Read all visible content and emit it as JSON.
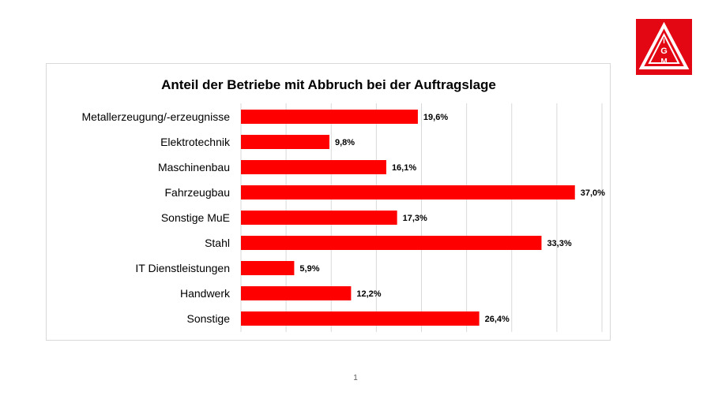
{
  "logo": {
    "text": "IGM",
    "color": "#e30613"
  },
  "page_number": "1",
  "colors": {
    "bar": "#ff0000",
    "grid": "#d9d9d9",
    "text": "#000000"
  },
  "chart_data": {
    "type": "bar",
    "orientation": "horizontal",
    "title": "Anteil der Betriebe mit Abbruch bei der Auftragslage",
    "categories": [
      "Metallerzeugung/-erzeugnisse",
      "Elektrotechnik",
      "Maschinenbau",
      "Fahrzeugbau",
      "Sonstige MuE",
      "Stahl",
      "IT Dienstleistungen",
      "Handwerk",
      "Sonstige"
    ],
    "values": [
      19.6,
      9.8,
      16.1,
      37.0,
      17.3,
      33.3,
      5.9,
      12.2,
      26.4
    ],
    "value_labels": [
      "19,6%",
      "9,8%",
      "16,1%",
      "37,0%",
      "17,3%",
      "33,3%",
      "5,9%",
      "12,2%",
      "26,4%"
    ],
    "xlim": [
      0,
      40
    ],
    "grid": true,
    "xlabel": "",
    "ylabel": ""
  }
}
